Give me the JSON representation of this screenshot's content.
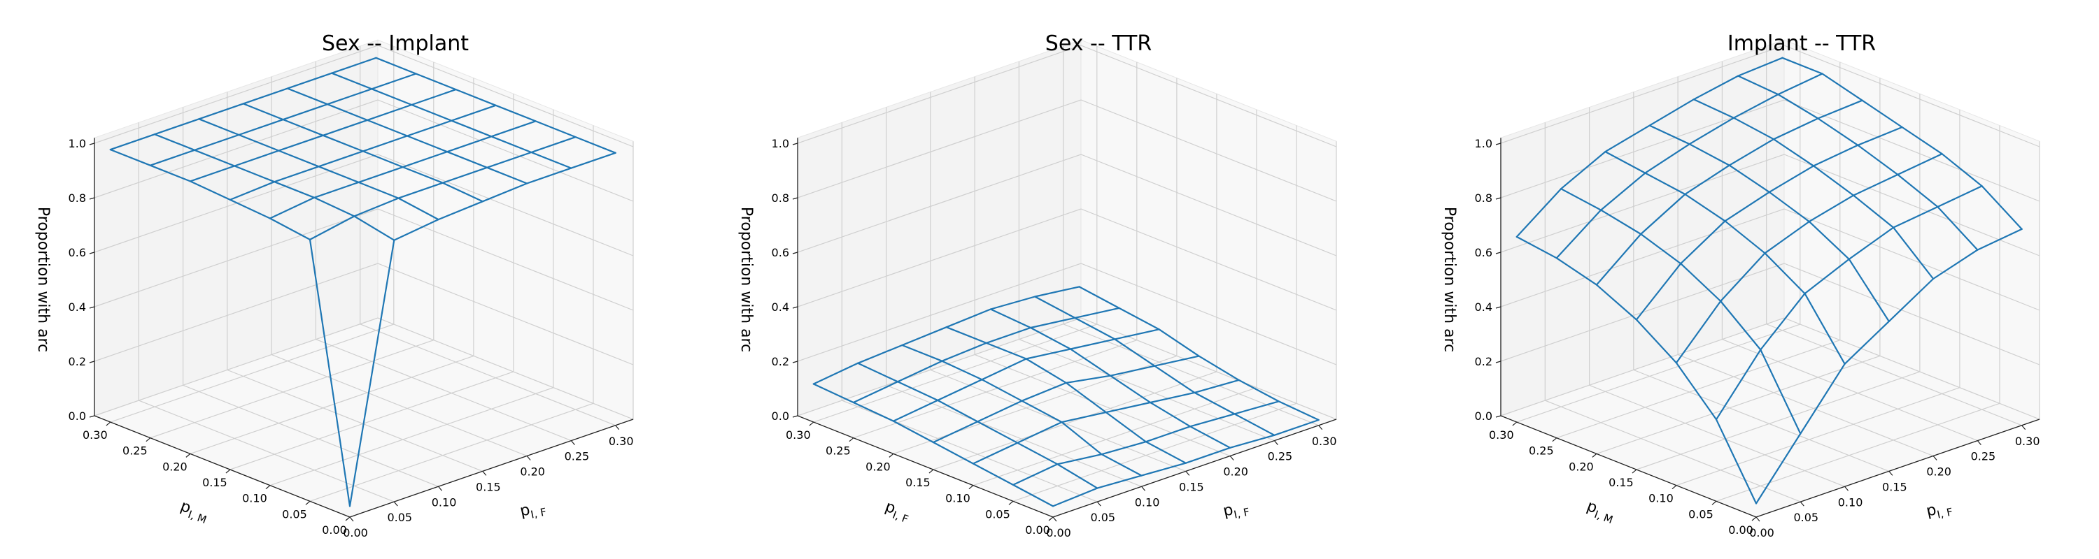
{
  "colors": {
    "wire": "#1f77b4",
    "pane": "#f2f2f2"
  },
  "chart_data": [
    {
      "type": "surface",
      "title": "Sex -- Implant",
      "xlabel": "p",
      "xlabel_sub": "I, F",
      "ylabel": "p",
      "ylabel_sub": "I, M",
      "zlabel": "Proportion with arc",
      "x_ticks": [
        "0.00",
        "0.05",
        "0.10",
        "0.15",
        "0.20",
        "0.25",
        "0.30"
      ],
      "y_ticks": [
        "0.00",
        "0.05",
        "0.10",
        "0.15",
        "0.20",
        "0.25",
        "0.30"
      ],
      "z_ticks": [
        "0.0",
        "0.2",
        "0.4",
        "0.6",
        "0.8",
        "1.0"
      ],
      "xlim": [
        0,
        0.32
      ],
      "ylim": [
        0,
        0.32
      ],
      "zlim": [
        0,
        1.0
      ],
      "x": [
        0.0,
        0.05,
        0.1,
        0.15,
        0.2,
        0.25,
        0.3
      ],
      "y": [
        0.0,
        0.05,
        0.1,
        0.15,
        0.2,
        0.25,
        0.3
      ],
      "z": [
        [
          0.04,
          0.96,
          0.98,
          0.99,
          1.0,
          1.0,
          1.0
        ],
        [
          0.96,
          0.99,
          1.0,
          1.0,
          1.0,
          1.0,
          1.0
        ],
        [
          0.98,
          1.0,
          1.0,
          1.0,
          1.0,
          1.0,
          1.0
        ],
        [
          0.99,
          1.0,
          1.0,
          1.0,
          1.0,
          1.0,
          1.0
        ],
        [
          1.0,
          1.0,
          1.0,
          1.0,
          1.0,
          1.0,
          1.0
        ],
        [
          1.0,
          1.0,
          1.0,
          1.0,
          1.0,
          1.0,
          1.0
        ],
        [
          1.0,
          1.0,
          1.0,
          1.0,
          1.0,
          1.0,
          1.0
        ]
      ]
    },
    {
      "type": "surface",
      "title": "Sex -- TTR",
      "xlabel": "p",
      "xlabel_sub": "I, F",
      "ylabel": "p",
      "ylabel_sub": "I, F",
      "zlabel": "Proportion with arc",
      "x_ticks": [
        "0.00",
        "0.05",
        "0.10",
        "0.15",
        "0.20",
        "0.25",
        "0.30"
      ],
      "y_ticks": [
        "0.00",
        "0.05",
        "0.10",
        "0.15",
        "0.20",
        "0.25",
        "0.30"
      ],
      "z_ticks": [
        "0.0",
        "0.2",
        "0.4",
        "0.6",
        "0.8",
        "1.0"
      ],
      "xlim": [
        0,
        0.32
      ],
      "ylim": [
        0,
        0.32
      ],
      "zlim": [
        0,
        1.0
      ],
      "x": [
        0.0,
        0.05,
        0.1,
        0.15,
        0.2,
        0.25,
        0.3
      ],
      "y": [
        0.0,
        0.05,
        0.1,
        0.15,
        0.2,
        0.25,
        0.3
      ],
      "z": [
        [
          0.04,
          0.05,
          0.04,
          0.03,
          0.03,
          0.02,
          0.02
        ],
        [
          0.06,
          0.08,
          0.06,
          0.05,
          0.05,
          0.04,
          0.03
        ],
        [
          0.08,
          0.1,
          0.12,
          0.1,
          0.08,
          0.06,
          0.05
        ],
        [
          0.1,
          0.12,
          0.14,
          0.15,
          0.12,
          0.1,
          0.08
        ],
        [
          0.12,
          0.14,
          0.16,
          0.18,
          0.16,
          0.14,
          0.12
        ],
        [
          0.13,
          0.15,
          0.17,
          0.18,
          0.18,
          0.16,
          0.14
        ],
        [
          0.14,
          0.16,
          0.17,
          0.18,
          0.19,
          0.18,
          0.16
        ]
      ]
    },
    {
      "type": "surface",
      "title": "Implant -- TTR",
      "xlabel": "p",
      "xlabel_sub": "I, F",
      "ylabel": "p",
      "ylabel_sub": "I, M",
      "zlabel": "Proportion with arc",
      "x_ticks": [
        "0.00",
        "0.05",
        "0.10",
        "0.15",
        "0.20",
        "0.25",
        "0.30"
      ],
      "y_ticks": [
        "0.00",
        "0.05",
        "0.10",
        "0.15",
        "0.20",
        "0.25",
        "0.30"
      ],
      "z_ticks": [
        "0.0",
        "0.2",
        "0.4",
        "0.6",
        "0.8",
        "1.0"
      ],
      "xlim": [
        0,
        0.32
      ],
      "ylim": [
        0,
        0.32
      ],
      "zlim": [
        0,
        1.0
      ],
      "x": [
        0.0,
        0.05,
        0.1,
        0.15,
        0.2,
        0.25,
        0.3
      ],
      "y": [
        0.0,
        0.05,
        0.1,
        0.15,
        0.2,
        0.25,
        0.3
      ],
      "z": [
        [
          0.05,
          0.25,
          0.45,
          0.55,
          0.65,
          0.7,
          0.72
        ],
        [
          0.3,
          0.5,
          0.65,
          0.72,
          0.78,
          0.8,
          0.82
        ],
        [
          0.45,
          0.62,
          0.74,
          0.8,
          0.84,
          0.86,
          0.88
        ],
        [
          0.55,
          0.7,
          0.8,
          0.85,
          0.89,
          0.91,
          0.92
        ],
        [
          0.62,
          0.75,
          0.84,
          0.89,
          0.93,
          0.95,
          0.96
        ],
        [
          0.66,
          0.78,
          0.86,
          0.91,
          0.95,
          0.98,
          1.0
        ],
        [
          0.68,
          0.8,
          0.88,
          0.92,
          0.96,
          0.99,
          1.0
        ]
      ]
    }
  ]
}
